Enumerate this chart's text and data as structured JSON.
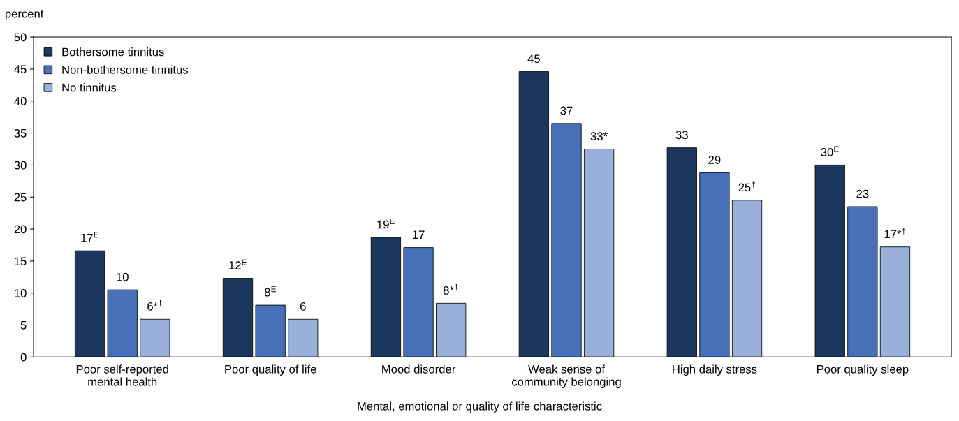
{
  "chart_data": {
    "type": "bar",
    "ylabel": "percent",
    "xlabel": "Mental, emotional or quality of life characteristic",
    "categories": [
      "Poor self-reported\nmental health",
      "Poor quality of life",
      "Mood disorder",
      "Weak sense of\ncommunity belonging",
      "High daily stress",
      "Poor quality sleep"
    ],
    "series": [
      {
        "name": "Bothersome tinnitus",
        "color": "#1d365e",
        "values": [
          16.6,
          12.3,
          18.7,
          44.6,
          32.7,
          30.0
        ],
        "value_labels": [
          "17$^{E}$",
          "12$^{E}$",
          "19$^{E}$",
          "45",
          "33",
          "30$^{E}$"
        ]
      },
      {
        "name": "Non-bothersome tinnitus",
        "color": "#4870b8",
        "values": [
          10.5,
          8.1,
          17.1,
          36.5,
          28.8,
          23.5
        ],
        "value_labels": [
          "10",
          "8$^{E}$",
          "17",
          "37",
          "29",
          "23"
        ]
      },
      {
        "name": "No tinnitus",
        "color": "#98b0da",
        "values": [
          5.9,
          5.9,
          8.4,
          32.5,
          24.5,
          17.2
        ],
        "value_labels": [
          "6*$^{†}$",
          "6",
          "8*$^{†}$",
          "33*",
          "25$^{†}$",
          "17*$^{†}$"
        ]
      }
    ],
    "ylim": [
      0,
      50
    ],
    "yticks": [
      0,
      5,
      10,
      15,
      20,
      25,
      30,
      35,
      40,
      45,
      50
    ],
    "grid": false,
    "legend": "top left"
  }
}
